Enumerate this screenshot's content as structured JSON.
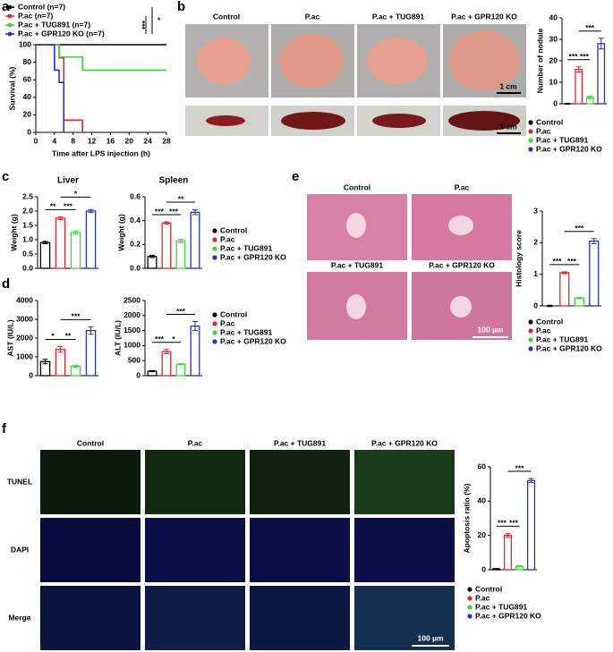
{
  "panel_labels": [
    "a",
    "b",
    "c",
    "d",
    "e",
    "f"
  ],
  "groups": {
    "names": [
      "Control",
      "P.ac",
      "P.ac + TUG891",
      "P.ac + GPR120 KO"
    ],
    "colors": [
      "#000000",
      "#e8262a",
      "#33dd33",
      "#2233cc"
    ]
  },
  "scale_bars": [
    "1 cm",
    "1 cm",
    "100 µm",
    "100 µm"
  ],
  "row_labels": [
    "TUNEL",
    "DAPI",
    "Merge"
  ],
  "chart_data": [
    {
      "type": "line",
      "xlabel": "Time after LPS injection (h)",
      "ylabel": "Survival (%)",
      "xlim": [
        0,
        28
      ],
      "xticks": [
        0,
        4,
        8,
        12,
        16,
        20,
        24,
        28
      ],
      "ylim": [
        0,
        100
      ],
      "yticks": [
        0,
        20,
        40,
        60,
        80,
        100
      ],
      "series": [
        {
          "name": "Control (n=7)",
          "color": "#000000",
          "x": [
            0,
            28
          ],
          "values": [
            100,
            100
          ]
        },
        {
          "name": "P.ac (n=7)",
          "color": "#e8262a",
          "x": [
            0,
            5,
            5,
            6,
            6,
            10,
            10
          ],
          "values": [
            100,
            100,
            85,
            85,
            14,
            14,
            0
          ]
        },
        {
          "name": "P.ac + TUG891 (n=7)",
          "color": "#33dd33",
          "x": [
            0,
            5,
            5,
            10,
            10,
            28
          ],
          "values": [
            100,
            100,
            86,
            86,
            71,
            71
          ]
        },
        {
          "name": "P.ac + GPR120 KO (n=7)",
          "color": "#2233cc",
          "x": [
            0,
            4,
            4,
            5,
            5,
            6,
            6
          ],
          "values": [
            100,
            100,
            71,
            71,
            57,
            57,
            0
          ]
        }
      ],
      "annotations": [
        "***",
        "*"
      ]
    },
    {
      "type": "bar",
      "ylabel": "Number of nodule",
      "ylim": [
        0,
        40
      ],
      "yticks": [
        0,
        10,
        20,
        30,
        40
      ],
      "values": [
        0,
        16,
        3,
        28
      ],
      "errors": [
        0.2,
        1.2,
        0.6,
        2.5
      ],
      "annotations": [
        "***",
        "***",
        "***"
      ]
    },
    {
      "type": "bar",
      "title": "Liver",
      "ylabel": "Weight (g)",
      "ylim": [
        0,
        2.5
      ],
      "yticks": [
        {
          "value": 0,
          "label": "0.0"
        },
        {
          "value": 0.5,
          "label": "0.5"
        },
        {
          "value": 1,
          "label": "1.0"
        },
        {
          "value": 1.5,
          "label": "1.5"
        },
        {
          "value": 2,
          "label": "2.0"
        },
        {
          "value": 2.5,
          "label": "2.5"
        }
      ],
      "values": [
        0.9,
        1.75,
        1.25,
        2.0
      ],
      "errors": [
        0.04,
        0.05,
        0.06,
        0.05
      ],
      "annotations": [
        "**",
        "***",
        "*"
      ]
    },
    {
      "type": "bar",
      "title": "Spleen",
      "ylabel": "Weight (g)",
      "ylim": [
        0,
        0.6
      ],
      "yticks": [
        {
          "value": 0,
          "label": "0.0"
        },
        {
          "value": 0.2,
          "label": "0.2"
        },
        {
          "value": 0.4,
          "label": "0.4"
        },
        {
          "value": 0.6,
          "label": "0.6"
        }
      ],
      "values": [
        0.1,
        0.38,
        0.23,
        0.47
      ],
      "errors": [
        0.01,
        0.01,
        0.015,
        0.02
      ],
      "annotations": [
        "***",
        "***",
        "**"
      ]
    },
    {
      "type": "bar",
      "ylabel": "AST (IU/L)",
      "ylim": [
        0,
        4000
      ],
      "yticks": [
        0,
        1000,
        2000,
        3000,
        4000
      ],
      "values": [
        750,
        1400,
        500,
        2400
      ],
      "errors": [
        120,
        150,
        60,
        200
      ],
      "annotations": [
        "*",
        "**",
        "***"
      ]
    },
    {
      "type": "bar",
      "ylabel": "ALT (IU/L)",
      "ylim": [
        0,
        2500
      ],
      "yticks": [
        0,
        500,
        1000,
        1500,
        2000,
        2500
      ],
      "values": [
        150,
        800,
        380,
        1650
      ],
      "errors": [
        20,
        70,
        20,
        150
      ],
      "annotations": [
        "***",
        "*",
        "***"
      ]
    },
    {
      "type": "bar",
      "ylabel": "Histology score",
      "ylim": [
        0,
        3
      ],
      "yticks": [
        0,
        1,
        2,
        3
      ],
      "values": [
        0,
        1.05,
        0.25,
        2.05
      ],
      "errors": [
        0.02,
        0.03,
        0.02,
        0.08
      ],
      "annotations": [
        "***",
        "***",
        "***"
      ]
    },
    {
      "type": "bar",
      "ylabel": "Apoptosis ratio (%)",
      "ylim": [
        0,
        60
      ],
      "yticks": [
        0,
        20,
        40,
        60
      ],
      "values": [
        0.5,
        20,
        2,
        52
      ],
      "errors": [
        0.2,
        1.2,
        0.3,
        1.2
      ],
      "annotations": [
        "***",
        "***",
        "***"
      ]
    }
  ]
}
